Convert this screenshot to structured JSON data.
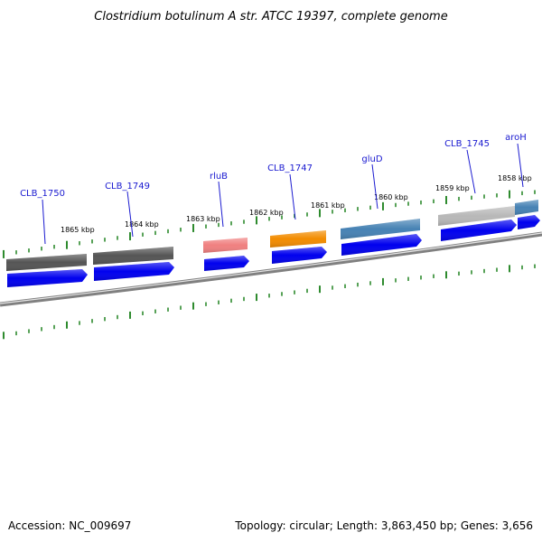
{
  "title": "Clostridium botulinum A str. ATCC 19397, complete genome",
  "footer": {
    "accession": "Accession: NC_009697",
    "summary": "Topology: circular; Length: 3,863,450 bp; Genes: 3,656"
  },
  "kbp_labels": [
    "1865 kbp",
    "1864 kbp",
    "1863 kbp",
    "1862 kbp",
    "1861 kbp",
    "1860 kbp",
    "1859 kbp",
    "1858 kbp"
  ],
  "genes": [
    {
      "label": "CLB_1750",
      "color": "#555555"
    },
    {
      "label": "CLB_1749",
      "color": "#555555"
    },
    {
      "label": "rluB",
      "color": "#f08080"
    },
    {
      "label": "CLB_1747",
      "color": "#f28c00"
    },
    {
      "label": "gluD",
      "color": "#4682b4"
    },
    {
      "label": "CLB_1745",
      "color": "#b8b8b8"
    },
    {
      "label": "aroH",
      "color": "#4682b4"
    }
  ],
  "colors": {
    "cds_arrow": "#0000ee",
    "tick": "#2e8b2e",
    "backbone": "#808080",
    "gene_label": "#1a1ad0"
  }
}
